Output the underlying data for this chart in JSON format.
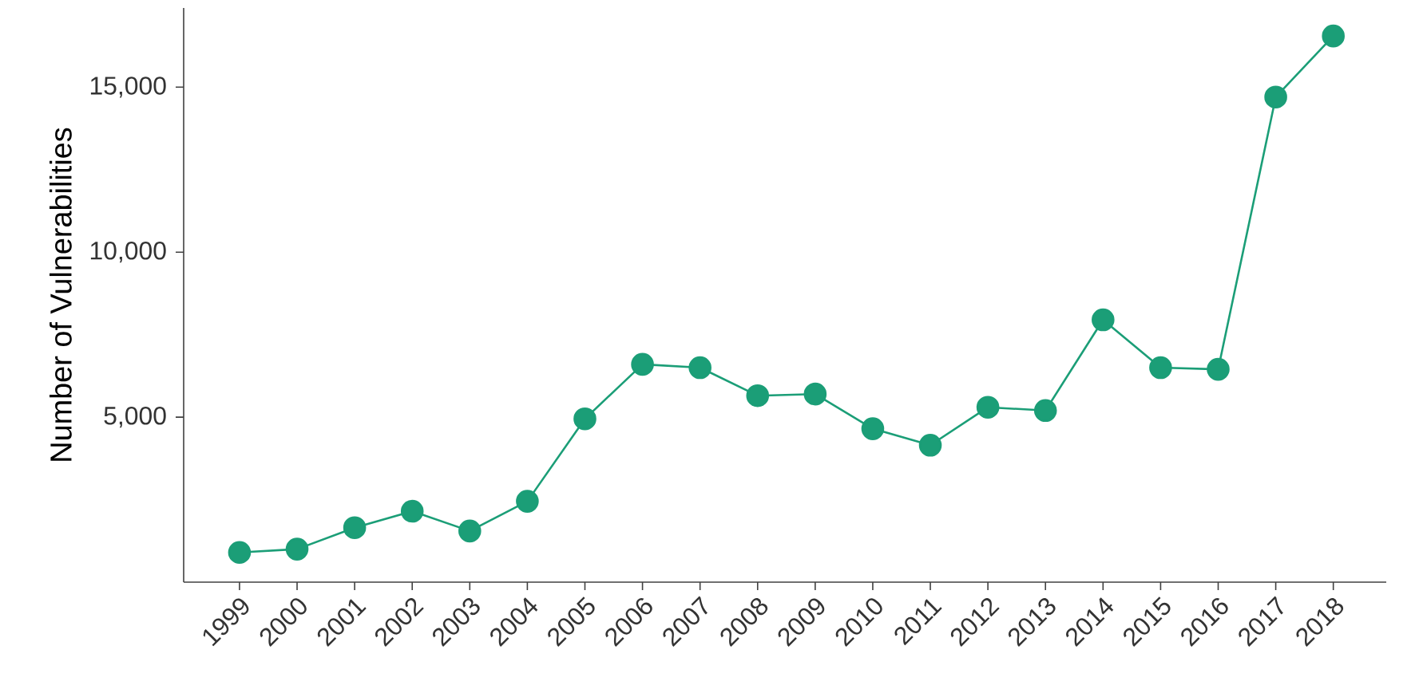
{
  "chart_data": {
    "type": "line",
    "ylabel": "Number of Vulnerabilities",
    "categories": [
      "1999",
      "2000",
      "2001",
      "2002",
      "2003",
      "2004",
      "2005",
      "2006",
      "2007",
      "2008",
      "2009",
      "2010",
      "2011",
      "2012",
      "2013",
      "2014",
      "2015",
      "2016",
      "2017",
      "2018"
    ],
    "values": [
      900,
      1000,
      1650,
      2150,
      1550,
      2450,
      4950,
      6600,
      6500,
      5650,
      5700,
      4650,
      4150,
      5300,
      5200,
      7950,
      6500,
      6450,
      14700,
      16550
    ],
    "color": "#1b9e77",
    "marker": "circle",
    "line_style": "solid",
    "ylim": [
      0,
      17400
    ],
    "yticks": [
      {
        "value": 5000,
        "label": "5,000"
      },
      {
        "value": 10000,
        "label": "10,000"
      },
      {
        "value": 15000,
        "label": "15,000"
      }
    ]
  }
}
